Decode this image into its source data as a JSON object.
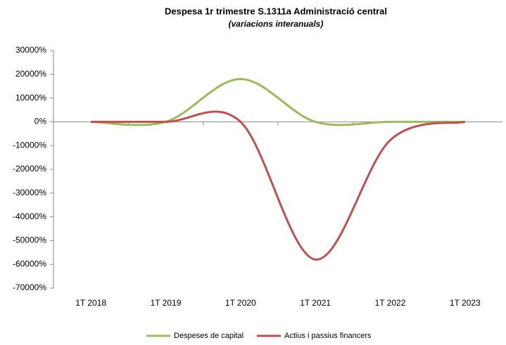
{
  "chart_data": {
    "type": "line",
    "title": "Despesa 1r trimestre S.1311a Administració central",
    "subtitle": "(variacions interanuals)",
    "categories": [
      "1T 2018",
      "1T 2019",
      "1T 2020",
      "1T 2021",
      "1T 2022",
      "1T 2023"
    ],
    "series": [
      {
        "name": "Despeses de capital",
        "color": "#9bbb59",
        "values": [
          0,
          0,
          18000,
          0,
          0,
          0
        ]
      },
      {
        "name": "Actius i passius financers",
        "color": "#c0504d",
        "values": [
          0,
          0,
          0,
          -58000,
          -7700,
          0
        ]
      }
    ],
    "ylim": [
      -70000,
      30000
    ],
    "yticks": [
      {
        "value": -70000,
        "label": "-70000%"
      },
      {
        "value": -60000,
        "label": "-60000%"
      },
      {
        "value": -50000,
        "label": "-50000%"
      },
      {
        "value": -40000,
        "label": "-40000%"
      },
      {
        "value": -30000,
        "label": "-30000%"
      },
      {
        "value": -20000,
        "label": "-20000%"
      },
      {
        "value": -10000,
        "label": "-10000%"
      },
      {
        "value": 0,
        "label": "0%"
      },
      {
        "value": 10000,
        "label": "10000%"
      },
      {
        "value": 20000,
        "label": "20000%"
      },
      {
        "value": 30000,
        "label": "30000%"
      }
    ],
    "smooth": true,
    "legend": "bottom"
  }
}
